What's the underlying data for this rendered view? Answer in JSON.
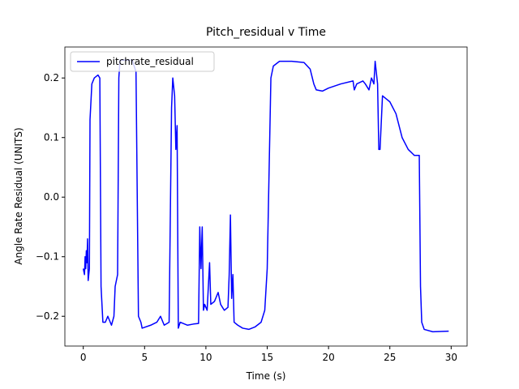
{
  "chart_data": {
    "type": "line",
    "title": "Pitch_residual v Time",
    "x_label": "Time (s)",
    "y_label": "Angle Rate Residual (UNITS)",
    "legend": "upper left",
    "xlim": [
      -1.5,
      31.3
    ],
    "ylim": [
      -0.25,
      0.252
    ],
    "xticks": [
      0,
      5,
      10,
      15,
      20,
      25,
      30
    ],
    "yticks": [
      {
        "value": -0.2,
        "label": "−0.2"
      },
      {
        "value": -0.1,
        "label": "−0.1"
      },
      {
        "value": 0,
        "label": "0.0"
      },
      0.1,
      0.2
    ],
    "x": [
      0.0,
      0.1,
      0.15,
      0.2,
      0.25,
      0.3,
      0.35,
      0.4,
      0.5,
      0.55,
      0.7,
      0.9,
      1.2,
      1.35,
      1.45,
      1.6,
      1.8,
      2.0,
      2.3,
      2.5,
      2.6,
      2.8,
      2.9,
      3.0,
      3.5,
      4.0,
      4.3,
      4.5,
      4.7,
      4.8,
      5.5,
      6.0,
      6.3,
      6.6,
      7.0,
      7.2,
      7.3,
      7.45,
      7.55,
      7.65,
      7.75,
      7.9,
      8.5,
      9.0,
      9.4,
      9.5,
      9.6,
      9.7,
      9.8,
      9.9,
      10.1,
      10.3,
      10.4,
      10.7,
      11.0,
      11.2,
      11.5,
      11.8,
      11.9,
      12.0,
      12.1,
      12.2,
      12.3,
      12.6,
      13.0,
      13.5,
      14.0,
      14.5,
      14.8,
      15.0,
      15.3,
      15.5,
      16.0,
      17.0,
      18.0,
      18.5,
      18.8,
      19.0,
      19.5,
      20.0,
      21.0,
      22.0,
      22.1,
      22.3,
      22.8,
      23.0,
      23.3,
      23.5,
      23.7,
      23.8,
      24.0,
      24.1,
      24.2,
      24.4,
      24.7,
      25.0,
      25.5,
      26.0,
      26.5,
      27.0,
      27.4,
      27.5,
      27.6,
      27.8,
      28.5,
      29.8
    ],
    "series": [
      {
        "name": "pitchrate_residual",
        "color": "#0000ff",
        "values": [
          -0.12,
          -0.13,
          -0.1,
          -0.12,
          -0.09,
          -0.11,
          -0.07,
          -0.14,
          -0.12,
          0.13,
          0.19,
          0.2,
          0.205,
          0.2,
          -0.15,
          -0.21,
          -0.21,
          -0.2,
          -0.215,
          -0.2,
          -0.15,
          -0.13,
          0.2,
          0.23,
          0.23,
          0.23,
          0.21,
          -0.2,
          -0.21,
          -0.22,
          -0.215,
          -0.21,
          -0.2,
          -0.215,
          -0.21,
          0.15,
          0.2,
          0.17,
          0.08,
          0.12,
          -0.22,
          -0.21,
          -0.215,
          -0.213,
          -0.212,
          -0.05,
          -0.12,
          -0.05,
          -0.19,
          -0.18,
          -0.19,
          -0.11,
          -0.18,
          -0.175,
          -0.16,
          -0.18,
          -0.19,
          -0.185,
          -0.13,
          -0.03,
          -0.17,
          -0.13,
          -0.21,
          -0.215,
          -0.22,
          -0.222,
          -0.218,
          -0.21,
          -0.19,
          -0.12,
          0.2,
          0.22,
          0.228,
          0.228,
          0.226,
          0.215,
          0.19,
          0.18,
          0.178,
          0.183,
          0.19,
          0.195,
          0.18,
          0.19,
          0.195,
          0.19,
          0.18,
          0.2,
          0.19,
          0.228,
          0.19,
          0.08,
          0.08,
          0.17,
          0.165,
          0.16,
          0.14,
          0.1,
          0.08,
          0.07,
          0.07,
          -0.15,
          -0.21,
          -0.222,
          -0.226,
          -0.225
        ]
      }
    ]
  }
}
